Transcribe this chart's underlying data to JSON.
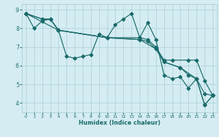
{
  "xlabel": "Humidex (Indice chaleur)",
  "bg_color": "#d4ecf2",
  "grid_color": "#aacdd8",
  "line_color": "#1a6b6b",
  "xlim": [
    -0.5,
    23.5
  ],
  "ylim": [
    3.5,
    9.3
  ],
  "yticks": [
    4,
    5,
    6,
    7,
    8,
    9
  ],
  "xticks": [
    0,
    1,
    2,
    3,
    4,
    5,
    6,
    7,
    8,
    9,
    10,
    11,
    12,
    13,
    14,
    15,
    16,
    17,
    18,
    19,
    20,
    21,
    22,
    23
  ],
  "lines": [
    {
      "x": [
        0,
        1,
        2,
        3,
        4,
        5,
        6,
        7,
        8,
        9,
        10,
        11,
        12,
        13,
        14,
        15,
        16,
        17,
        18,
        19,
        20,
        21,
        22,
        23
      ],
      "y": [
        8.8,
        8.0,
        8.4,
        8.5,
        7.9,
        6.5,
        6.4,
        6.5,
        6.6,
        7.7,
        7.5,
        8.2,
        8.5,
        8.8,
        7.5,
        8.3,
        7.4,
        5.5,
        5.3,
        5.4,
        4.8,
        5.3,
        3.9,
        4.4
      ]
    },
    {
      "x": [
        0,
        2,
        3,
        4,
        10,
        14,
        15,
        16,
        17,
        18,
        20,
        21,
        22,
        23
      ],
      "y": [
        8.8,
        8.5,
        8.5,
        7.9,
        7.5,
        7.5,
        7.4,
        7.0,
        6.3,
        6.3,
        6.3,
        6.3,
        5.2,
        4.4
      ]
    },
    {
      "x": [
        0,
        2,
        3,
        4,
        10,
        14,
        15,
        16,
        17,
        19,
        20,
        21,
        22,
        23
      ],
      "y": [
        8.8,
        8.5,
        8.5,
        7.9,
        7.5,
        7.4,
        7.3,
        6.9,
        6.2,
        5.9,
        5.5,
        5.3,
        4.5,
        4.4
      ]
    },
    {
      "x": [
        0,
        4,
        10,
        14,
        16,
        17,
        19,
        21,
        22,
        23
      ],
      "y": [
        8.8,
        7.9,
        7.5,
        7.4,
        6.9,
        6.2,
        5.9,
        5.3,
        3.9,
        4.4
      ]
    }
  ],
  "marker": "D",
  "marker_size": 2.5,
  "line_width": 0.9
}
